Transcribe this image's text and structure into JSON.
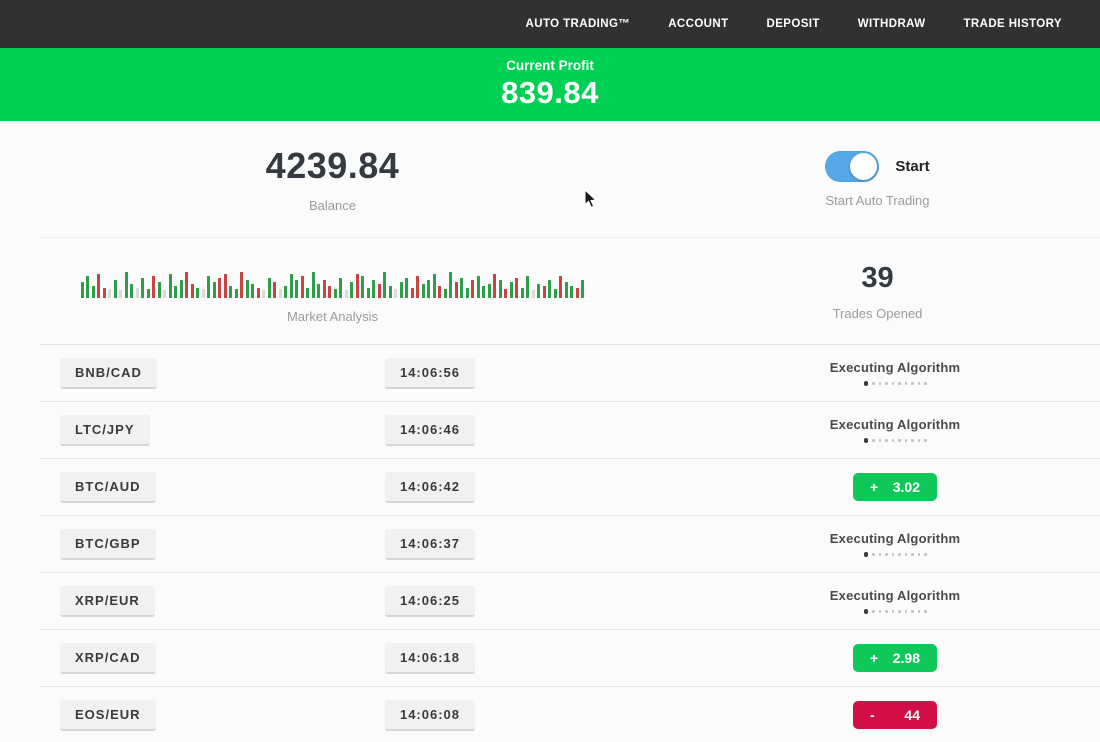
{
  "colors": {
    "nav_bg": "#313131",
    "banner_green": "#00d053",
    "toggle_blue": "#56a9e8",
    "profit_green": "#10c859",
    "loss_red": "#d20f46",
    "bar_palette": {
      "g": "#2f9e4a",
      "r": "#c94343",
      "l": "#d9d9d9"
    }
  },
  "nav": {
    "items": [
      {
        "label": "AUTO TRADING™"
      },
      {
        "label": "ACCOUNT"
      },
      {
        "label": "DEPOSIT"
      },
      {
        "label": "WITHDRAW"
      },
      {
        "label": "TRADE HISTORY"
      }
    ]
  },
  "banner": {
    "label": "Current Profit",
    "value": "839.84"
  },
  "stats": {
    "balance": {
      "value": "4239.84",
      "label": "Balance"
    },
    "auto_trading": {
      "toggle_state": "on",
      "toggle_label": "Start",
      "label": "Start Auto Trading"
    },
    "market_analysis": {
      "label": "Market Analysis"
    },
    "trades_opened": {
      "value": "39",
      "label": "Trades Opened"
    }
  },
  "chart_data": {
    "type": "bar",
    "title": "Market Analysis",
    "note": "decorative mini bar strip; color g=green up, r=red down, l=pale; value=relative height px",
    "bars": "g16,g22,g12,r24,r10,l9,g18,l8,g26,g14,l10,g20,g9,r22,g16,l8,g24,g12,g18,r26,r14,g10,l9,g22,g16,r20,r24,g12,g9,r26,g18,g14,r10,l8,g20,r16,l9,g12,g24,g18,r22,g10,g26,g14,r18,r12,g9,g20,l8,g16,r24,g22,g10,g18,r14,g26,g12,l9,g16,g20,r10,r22,g14,g18,g24,r12,g9,g26,r16,g20,g10,r18,g22,g12,g14,r24,g18,r9,g16,r20,g10,g22,l8,g14,r12,g18,g9,r22,g16,g12,r10,g18"
  },
  "trades": [
    {
      "pair": "BNB/CAD",
      "time": "14:06:56",
      "status": {
        "type": "executing",
        "label": "Executing Algorithm"
      }
    },
    {
      "pair": "LTC/JPY",
      "time": "14:06:46",
      "status": {
        "type": "executing",
        "label": "Executing Algorithm"
      }
    },
    {
      "pair": "BTC/AUD",
      "time": "14:06:42",
      "status": {
        "type": "result",
        "sign": "+",
        "value": "3.02",
        "color": "#10c859"
      }
    },
    {
      "pair": "BTC/GBP",
      "time": "14:06:37",
      "status": {
        "type": "executing",
        "label": "Executing Algorithm"
      }
    },
    {
      "pair": "XRP/EUR",
      "time": "14:06:25",
      "status": {
        "type": "executing",
        "label": "Executing Algorithm"
      }
    },
    {
      "pair": "XRP/CAD",
      "time": "14:06:18",
      "status": {
        "type": "result",
        "sign": "+",
        "value": "2.98",
        "color": "#10c859"
      }
    },
    {
      "pair": "EOS/EUR",
      "time": "14:06:08",
      "status": {
        "type": "result",
        "sign": "-",
        "value": "44",
        "color": "#d20f46"
      }
    }
  ]
}
